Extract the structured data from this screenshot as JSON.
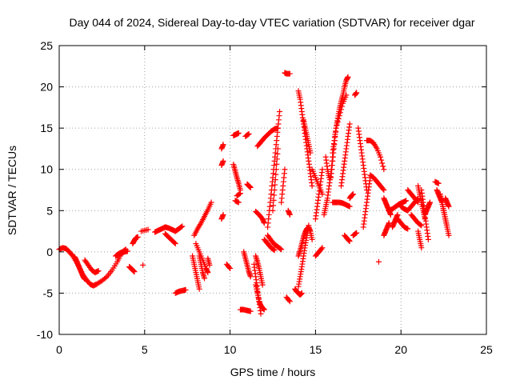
{
  "chart_data": {
    "type": "scatter",
    "title": "Day 044 of 2024, Sidereal Day-to-day VTEC variation (SDTVAR) for receiver dgar",
    "xlabel": "GPS time / hours",
    "ylabel": "SDTVAR / TECUs",
    "xlim": [
      0,
      25
    ],
    "ylim": [
      -10,
      25
    ],
    "xticks": [
      0,
      5,
      10,
      15,
      20,
      25
    ],
    "yticks": [
      -10,
      -5,
      0,
      5,
      10,
      15,
      20,
      25
    ],
    "grid": true,
    "legend": "none",
    "marker": "plus",
    "color": "#ff0000",
    "segments": [
      {
        "x": [
          0.0,
          0.2,
          0.4,
          0.6,
          0.8,
          1.0,
          1.2,
          1.4,
          1.6,
          1.8,
          2.0,
          2.2,
          2.5,
          2.8,
          3.1,
          3.4,
          3.6,
          3.8,
          4.0
        ],
        "y": [
          0.3,
          0.5,
          0.4,
          0.0,
          -0.5,
          -1.2,
          -2.0,
          -2.8,
          -3.4,
          -3.9,
          -4.1,
          -3.9,
          -3.5,
          -3.0,
          -2.2,
          -1.2,
          -0.3,
          0.0,
          0.1
        ]
      },
      {
        "x": [
          0.9,
          1.0,
          1.1,
          1.2,
          1.3,
          1.4,
          1.5
        ],
        "y": [
          -0.6,
          -1.0,
          -1.5,
          -2.0,
          -2.5,
          -3.0,
          -3.3
        ]
      },
      {
        "x": [
          1.5,
          1.7,
          1.9,
          2.1,
          2.3
        ],
        "y": [
          -1.0,
          -1.6,
          -2.2,
          -2.5,
          -2.3
        ]
      },
      {
        "x": [
          3.3,
          3.5,
          3.7,
          3.9
        ],
        "y": [
          -0.5,
          -0.2,
          0.0,
          0.3
        ]
      },
      {
        "x": [
          4.1,
          4.2,
          4.3,
          4.4
        ],
        "y": [
          -1.8,
          -2.0,
          -2.2,
          -2.4
        ]
      },
      {
        "x": [
          4.3,
          4.4,
          4.5,
          4.6
        ],
        "y": [
          1.0,
          1.4,
          1.7,
          1.8
        ]
      },
      {
        "x": [
          4.8,
          5.2
        ],
        "y": [
          2.5,
          2.7
        ]
      },
      {
        "x": [
          4.9
        ],
        "y": [
          -1.6
        ]
      },
      {
        "x": [
          5.6,
          5.8,
          6.0,
          6.2,
          6.4,
          6.6,
          6.8,
          7.0,
          7.2
        ],
        "y": [
          2.4,
          2.6,
          2.8,
          3.0,
          2.9,
          2.7,
          2.5,
          2.8,
          3.1
        ]
      },
      {
        "x": [
          6.2,
          6.4,
          6.6,
          6.8
        ],
        "y": [
          2.2,
          1.8,
          1.4,
          1.0
        ]
      },
      {
        "x": [
          6.8,
          7.0,
          7.2,
          7.4
        ],
        "y": [
          -5.0,
          -4.8,
          -4.7,
          -4.6
        ]
      },
      {
        "x": [
          7.8,
          7.9,
          8.0,
          8.1,
          8.2
        ],
        "y": [
          -0.5,
          -1.5,
          -2.5,
          -3.5,
          -4.5
        ]
      },
      {
        "x": [
          8.0,
          8.2,
          8.4,
          8.6,
          8.7
        ],
        "y": [
          1.0,
          0.0,
          -1.0,
          -2.0,
          -2.5
        ]
      },
      {
        "x": [
          8.2,
          8.3,
          8.4,
          8.5
        ],
        "y": [
          -0.5,
          -1.5,
          -2.5,
          -3.2
        ]
      },
      {
        "x": [
          7.9,
          8.1,
          8.3,
          8.5,
          8.7,
          8.9
        ],
        "y": [
          2.0,
          2.8,
          3.5,
          4.3,
          5.1,
          6.0
        ]
      },
      {
        "x": [
          8.7,
          8.8
        ],
        "y": [
          -0.8,
          -1.6
        ]
      },
      {
        "x": [
          9.5,
          9.6
        ],
        "y": [
          4.0,
          4.5
        ]
      },
      {
        "x": [
          9.5,
          9.6
        ],
        "y": [
          12.5,
          13.0
        ]
      },
      {
        "x": [
          9.5,
          9.6
        ],
        "y": [
          10.5,
          11.0
        ]
      },
      {
        "x": [
          9.8,
          10.0
        ],
        "y": [
          -1.5,
          -2.0
        ]
      },
      {
        "x": [
          10.2,
          10.3,
          10.4,
          10.5
        ],
        "y": [
          14.1,
          14.2,
          14.3,
          14.4
        ]
      },
      {
        "x": [
          10.2,
          10.3,
          10.4,
          10.5,
          10.6
        ],
        "y": [
          10.6,
          9.8,
          9.0,
          8.3,
          7.5
        ]
      },
      {
        "x": [
          10.4,
          10.6
        ],
        "y": [
          6.8,
          7.1
        ]
      },
      {
        "x": [
          10.3,
          10.5
        ],
        "y": [
          6.2,
          6.0
        ]
      },
      {
        "x": [
          10.9,
          11.1
        ],
        "y": [
          14.0,
          14.3
        ]
      },
      {
        "x": [
          11.0,
          11.1,
          11.2
        ],
        "y": [
          8.2,
          8.0,
          7.8
        ]
      },
      {
        "x": [
          10.8,
          10.9,
          11.0,
          11.1,
          11.2
        ],
        "y": [
          0.0,
          -0.8,
          -1.6,
          -2.4,
          -3.0
        ]
      },
      {
        "x": [
          10.6,
          10.8,
          11.0,
          11.2
        ],
        "y": [
          -7.0,
          -7.0,
          -7.1,
          -7.2
        ]
      },
      {
        "x": [
          11.5,
          11.6,
          11.7,
          11.8,
          11.9,
          12.0
        ],
        "y": [
          -4.0,
          -5.0,
          -6.0,
          -6.5,
          -6.8,
          -7.0
        ]
      },
      {
        "x": [
          11.4,
          11.5,
          11.6,
          11.7,
          11.8
        ],
        "y": [
          -1.5,
          -3.0,
          -4.5,
          -6.0,
          -7.5
        ]
      },
      {
        "x": [
          11.5,
          11.6,
          11.7,
          11.8,
          11.9
        ],
        "y": [
          -0.5,
          -1.2,
          -2.0,
          -3.0,
          -4.0
        ]
      },
      {
        "x": [
          11.5,
          11.7,
          11.9,
          12.0
        ],
        "y": [
          4.9,
          4.5,
          4.0,
          3.5
        ]
      },
      {
        "x": [
          11.6,
          11.8,
          12.0,
          12.2,
          12.4,
          12.6,
          12.8
        ],
        "y": [
          12.8,
          13.3,
          13.8,
          14.2,
          14.6,
          14.9,
          15.0
        ]
      },
      {
        "x": [
          12.0,
          12.2,
          12.4,
          12.6
        ],
        "y": [
          1.5,
          1.0,
          0.5,
          0.2
        ]
      },
      {
        "x": [
          12.2,
          12.4,
          12.6,
          12.8,
          13.0
        ],
        "y": [
          2.0,
          1.4,
          0.9,
          0.6,
          0.3
        ]
      },
      {
        "x": [
          12.2,
          12.3,
          12.4,
          12.5,
          12.6,
          12.7,
          12.8,
          12.9
        ],
        "y": [
          3.0,
          5.0,
          7.0,
          9.0,
          11.0,
          13.0,
          15.0,
          17.0
        ]
      },
      {
        "x": [
          12.5,
          12.6,
          12.7,
          12.8
        ],
        "y": [
          5.0,
          7.5,
          10.0,
          12.5
        ]
      },
      {
        "x": [
          13.0,
          13.1,
          13.2
        ],
        "y": [
          6.0,
          8.0,
          10.0
        ]
      },
      {
        "x": [
          13.2,
          13.3,
          13.5
        ],
        "y": [
          21.7,
          21.6,
          21.6
        ]
      },
      {
        "x": [
          13.4,
          13.5
        ],
        "y": [
          5.0,
          4.5
        ]
      },
      {
        "x": [
          13.3,
          13.5
        ],
        "y": [
          -5.5,
          -6.0
        ]
      },
      {
        "x": [
          13.8,
          13.9,
          14.0,
          14.1,
          14.2
        ],
        "y": [
          -4.5,
          -4.8,
          -5.0,
          -5.2,
          -5.0
        ]
      },
      {
        "x": [
          14.0,
          14.1,
          14.2,
          14.3,
          14.4,
          14.5,
          14.6,
          14.7,
          14.8
        ],
        "y": [
          -0.5,
          0.2,
          1.0,
          1.8,
          2.4,
          2.8,
          3.0,
          2.5,
          1.5
        ]
      },
      {
        "x": [
          14.0,
          14.1,
          14.2,
          14.3,
          14.4,
          14.5,
          14.6
        ],
        "y": [
          -4.2,
          -3.0,
          -1.8,
          -0.5,
          0.8,
          2.0,
          3.2
        ]
      },
      {
        "x": [
          14.0,
          14.1,
          14.2,
          14.3,
          14.4,
          14.5,
          14.6,
          14.7,
          14.8
        ],
        "y": [
          19.5,
          18.5,
          17.0,
          15.5,
          14.0,
          12.5,
          11.0,
          9.5,
          8.0
        ]
      },
      {
        "x": [
          14.3,
          14.4,
          14.5,
          14.6,
          14.7
        ],
        "y": [
          16.0,
          15.0,
          14.0,
          13.0,
          12.0
        ]
      },
      {
        "x": [
          14.8,
          15.0,
          15.2,
          15.4
        ],
        "y": [
          10.0,
          9.0,
          8.0,
          7.0
        ]
      },
      {
        "x": [
          15.0,
          15.1,
          15.2,
          15.3,
          15.4
        ],
        "y": [
          4.0,
          5.5,
          7.0,
          8.5,
          10.0
        ]
      },
      {
        "x": [
          15.0,
          15.2,
          15.4
        ],
        "y": [
          -0.5,
          0.0,
          0.5
        ]
      },
      {
        "x": [
          15.5,
          15.6,
          15.7,
          15.8,
          15.9,
          16.0
        ],
        "y": [
          4.5,
          5.5,
          6.5,
          8.0,
          9.5,
          11.5
        ]
      },
      {
        "x": [
          15.6,
          15.7,
          15.8
        ],
        "y": [
          11.5,
          10.0,
          9.0
        ]
      },
      {
        "x": [
          15.9,
          16.0,
          16.1,
          16.2
        ],
        "y": [
          9.0,
          11.0,
          13.0,
          15.0
        ]
      },
      {
        "x": [
          16.0,
          16.1,
          16.2,
          16.3,
          16.4,
          16.5,
          16.6,
          16.7,
          16.8,
          16.9
        ],
        "y": [
          12.0,
          13.5,
          15.0,
          16.2,
          17.3,
          18.2,
          19.0,
          20.0,
          20.8,
          21.2
        ]
      },
      {
        "x": [
          16.2,
          16.4,
          16.6,
          16.8
        ],
        "y": [
          15.0,
          16.5,
          18.0,
          19.0
        ]
      },
      {
        "x": [
          16.0,
          16.2,
          16.4,
          16.6,
          16.8,
          17.0
        ],
        "y": [
          6.0,
          6.0,
          6.0,
          5.9,
          5.7,
          5.5
        ]
      },
      {
        "x": [
          16.5,
          16.6,
          16.7,
          16.8,
          16.9,
          17.0
        ],
        "y": [
          8.0,
          9.5,
          11.0,
          12.5,
          14.0,
          15.5
        ]
      },
      {
        "x": [
          16.7,
          16.9,
          17.0
        ],
        "y": [
          2.0,
          1.5,
          1.3
        ]
      },
      {
        "x": [
          17.0,
          17.1,
          17.2
        ],
        "y": [
          6.5,
          6.8,
          7.0
        ]
      },
      {
        "x": [
          17.2,
          17.4
        ],
        "y": [
          2.0,
          2.3
        ]
      },
      {
        "x": [
          17.3,
          17.4
        ],
        "y": [
          19.0,
          19.3
        ]
      },
      {
        "x": [
          17.5,
          17.6,
          17.7,
          17.8,
          17.9,
          18.0
        ],
        "y": [
          15.0,
          13.5,
          12.0,
          10.5,
          9.0,
          7.5
        ]
      },
      {
        "x": [
          17.8,
          17.9,
          18.0,
          18.1,
          18.2
        ],
        "y": [
          3.0,
          4.5,
          6.0,
          7.5,
          9.0
        ]
      },
      {
        "x": [
          18.0,
          18.2,
          18.4,
          18.6,
          18.8,
          19.0
        ],
        "y": [
          13.5,
          13.5,
          13.2,
          12.5,
          11.5,
          10.0
        ]
      },
      {
        "x": [
          18.2,
          18.4,
          18.6,
          18.8,
          19.0
        ],
        "y": [
          9.3,
          9.0,
          8.5,
          8.0,
          7.5
        ]
      },
      {
        "x": [
          18.7
        ],
        "y": [
          -1.2
        ]
      },
      {
        "x": [
          19.0,
          19.1,
          19.2,
          19.3,
          19.4
        ],
        "y": [
          6.5,
          6.0,
          5.5,
          5.0,
          4.5
        ]
      },
      {
        "x": [
          19.0,
          19.1,
          19.2,
          19.3
        ],
        "y": [
          2.0,
          2.5,
          3.0,
          3.5
        ]
      },
      {
        "x": [
          19.3,
          19.5,
          19.7,
          19.9,
          20.1,
          20.3
        ],
        "y": [
          5.0,
          5.2,
          5.5,
          5.8,
          6.0,
          6.2
        ]
      },
      {
        "x": [
          19.5,
          19.6,
          19.7,
          19.8
        ],
        "y": [
          3.0,
          3.5,
          4.0,
          4.5
        ]
      },
      {
        "x": [
          19.8,
          20.0,
          20.2,
          20.4
        ],
        "y": [
          4.0,
          3.5,
          3.0,
          2.8
        ]
      },
      {
        "x": [
          20.0,
          20.2,
          20.4,
          20.6,
          20.8,
          21.0
        ],
        "y": [
          5.5,
          5.2,
          5.0,
          5.5,
          6.0,
          6.5
        ]
      },
      {
        "x": [
          20.4,
          20.6,
          20.8,
          21.0
        ],
        "y": [
          7.5,
          7.0,
          6.5,
          6.0
        ]
      },
      {
        "x": [
          20.6,
          20.8,
          21.0,
          21.2
        ],
        "y": [
          4.5,
          4.0,
          3.5,
          3.2
        ]
      },
      {
        "x": [
          21.0,
          21.1,
          21.2,
          21.3,
          21.4
        ],
        "y": [
          8.0,
          7.0,
          6.0,
          5.0,
          4.0
        ]
      },
      {
        "x": [
          21.2,
          21.3,
          21.4,
          21.5,
          21.6
        ],
        "y": [
          7.5,
          6.0,
          4.5,
          3.0,
          1.5
        ]
      },
      {
        "x": [
          21.0,
          21.1,
          21.2
        ],
        "y": [
          2.5,
          1.5,
          0.5
        ]
      },
      {
        "x": [
          21.4,
          21.5,
          21.6,
          21.7
        ],
        "y": [
          4.5,
          5.0,
          5.5,
          6.0
        ]
      },
      {
        "x": [
          22.0,
          22.2
        ],
        "y": [
          8.5,
          8.3
        ]
      },
      {
        "x": [
          22.1,
          22.2,
          22.3,
          22.4,
          22.5,
          22.6,
          22.7
        ],
        "y": [
          7.5,
          7.0,
          6.5,
          6.0,
          5.0,
          4.0,
          3.0
        ]
      },
      {
        "x": [
          22.3,
          22.4,
          22.5,
          22.6,
          22.7,
          22.8
        ],
        "y": [
          7.0,
          6.0,
          5.0,
          4.0,
          3.0,
          2.0
        ]
      },
      {
        "x": [
          22.6,
          22.7,
          22.8
        ],
        "y": [
          6.5,
          6.0,
          5.5
        ]
      }
    ]
  }
}
